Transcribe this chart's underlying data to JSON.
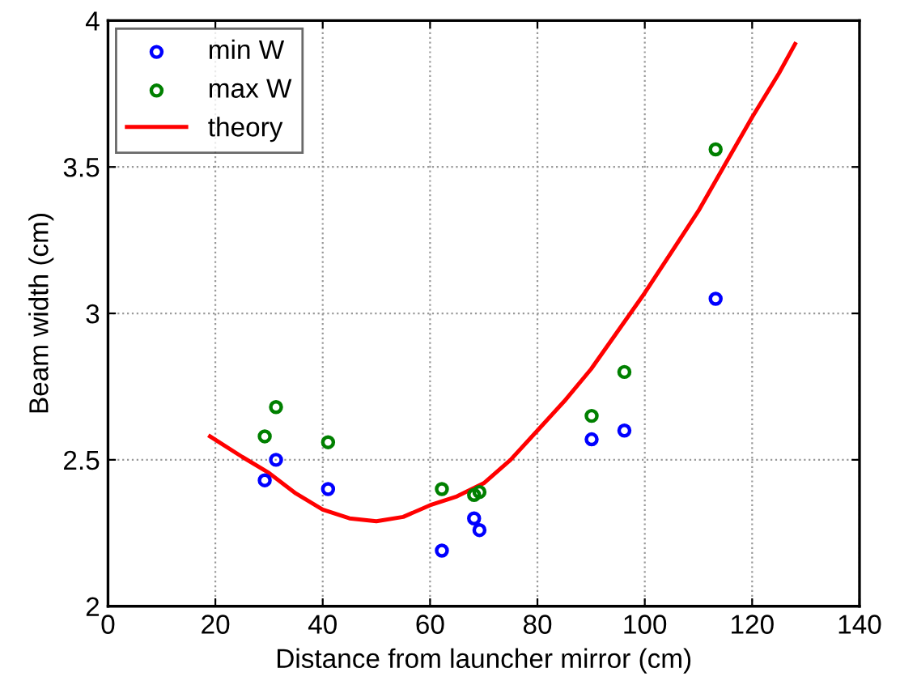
{
  "chart_data": {
    "type": "scatter",
    "xlabel": "Distance from launcher mirror (cm)",
    "ylabel": "Beam width (cm)",
    "xlim": [
      0,
      140
    ],
    "ylim": [
      2,
      4
    ],
    "xticks": [
      0,
      20,
      40,
      60,
      80,
      100,
      120,
      140
    ],
    "yticks": [
      2,
      2.5,
      3,
      3.5,
      4
    ],
    "grid": true,
    "legend": "top left",
    "marker": "circle",
    "series": [
      {
        "name": "min W",
        "color": "#0000ff",
        "x": [
          29.2,
          31.3,
          41,
          62.2,
          68.2,
          69.2,
          90.1,
          96.2,
          113.2
        ],
        "values": [
          2.43,
          2.5,
          2.4,
          2.19,
          2.3,
          2.26,
          2.57,
          2.6,
          3.05
        ]
      },
      {
        "name": "max W",
        "color": "#008000",
        "x": [
          29.2,
          31.3,
          41,
          62.2,
          68.2,
          69.2,
          90.1,
          96.2,
          113.2
        ],
        "values": [
          2.58,
          2.68,
          2.56,
          2.4,
          2.38,
          2.39,
          2.65,
          2.8,
          3.56
        ]
      },
      {
        "name": "theory",
        "type": "line",
        "color": "#ff0000",
        "marker": "none",
        "line_style": "solid",
        "x": [
          19,
          25,
          30,
          35,
          40,
          45,
          50,
          55,
          60,
          65,
          70,
          75,
          80,
          85,
          90,
          95,
          100,
          105,
          110,
          115,
          120,
          125,
          128
        ],
        "values": [
          2.58,
          2.51,
          2.455,
          2.385,
          2.33,
          2.3,
          2.29,
          2.305,
          2.345,
          2.375,
          2.42,
          2.5,
          2.6,
          2.7,
          2.81,
          2.94,
          3.07,
          3.21,
          3.35,
          3.51,
          3.67,
          3.82,
          3.92
        ]
      }
    ]
  }
}
